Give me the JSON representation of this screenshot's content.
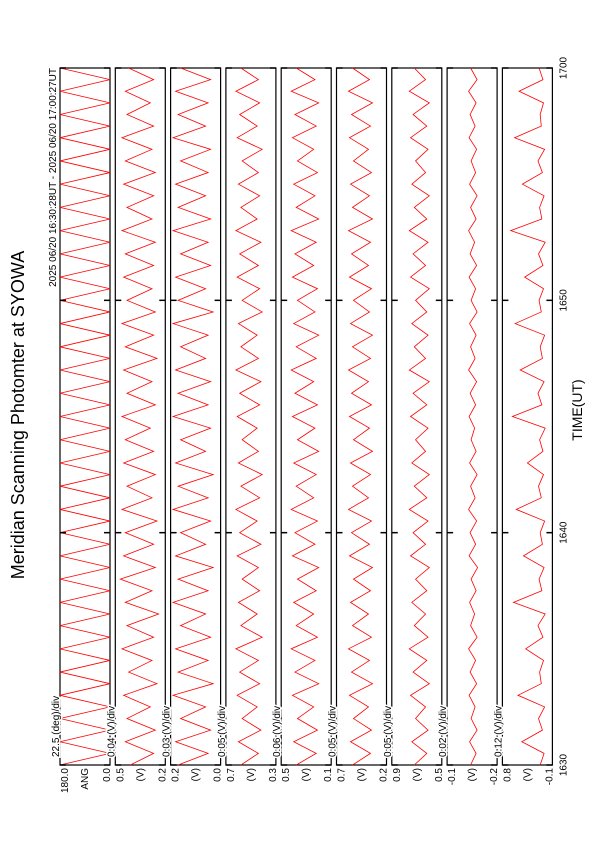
{
  "chart_data": {
    "type": "line",
    "title": "Meridian Scanning Photomter at SYOWA",
    "subtitle": "2025 06/20 16:30:28UT - 2025 06/20 17:00:27UT",
    "xlabel": "TIME(UT)",
    "color": "#ff0000",
    "xlim": [
      0,
      30
    ],
    "xticks": [
      {
        "value": 0,
        "label": "1630"
      },
      {
        "value": 10,
        "label": "1640"
      },
      {
        "value": 20,
        "label": "1650"
      },
      {
        "value": 30,
        "label": "1700"
      }
    ],
    "x": [
      0,
      0.5,
      1,
      1.5,
      2,
      2.5,
      3,
      3.5,
      4,
      4.5,
      5,
      5.5,
      6,
      6.5,
      7,
      7.5,
      8,
      8.5,
      9,
      9.5,
      10,
      10.5,
      11,
      11.5,
      12,
      12.5,
      13,
      13.5,
      14,
      14.5,
      15,
      15.5,
      16,
      16.5,
      17,
      17.5,
      18,
      18.5,
      19,
      19.5,
      20,
      20.5,
      21,
      21.5,
      22,
      22.5,
      23,
      23.5,
      24,
      24.5,
      25,
      25.5,
      26,
      26.5,
      27,
      27.5,
      28,
      28.5,
      29,
      29.5,
      30
    ],
    "panels": [
      {
        "scale_label": "22.5 (deg)/div",
        "ylabel": "ANG",
        "ylim": [
          0,
          180
        ],
        "yticks": [
          {
            "value": 180,
            "label": "180.0"
          },
          {
            "value": 0,
            "label": "0.0"
          }
        ],
        "values": [
          180,
          0,
          180,
          0,
          180,
          0,
          180,
          0,
          180,
          0,
          180,
          0,
          180,
          0,
          180,
          0,
          180,
          0,
          180,
          0,
          180,
          0,
          180,
          0,
          180,
          0,
          180,
          0,
          180,
          0,
          180,
          0,
          180,
          0,
          180,
          0,
          180,
          0,
          180,
          0,
          180,
          0,
          180,
          0,
          180,
          0,
          180,
          0,
          180,
          0,
          180,
          0,
          180,
          0,
          180,
          0,
          180,
          0,
          180,
          0,
          180
        ]
      },
      {
        "scale_label": "0.04 (V)/div",
        "ylabel": "(V)",
        "ylim": [
          0.2,
          0.5
        ],
        "yticks": [
          0.5,
          0.2
        ],
        "values": [
          0.41,
          0.27,
          0.44,
          0.26,
          0.43,
          0.29,
          0.45,
          0.25,
          0.42,
          0.28,
          0.46,
          0.27,
          0.43,
          0.24,
          0.44,
          0.28,
          0.47,
          0.26,
          0.45,
          0.27,
          0.44,
          0.25,
          0.46,
          0.28,
          0.43,
          0.26,
          0.45,
          0.27,
          0.44,
          0.29,
          0.46,
          0.26,
          0.43,
          0.28,
          0.45,
          0.25,
          0.44,
          0.27,
          0.46,
          0.26,
          0.43,
          0.28,
          0.45,
          0.27,
          0.44,
          0.26,
          0.46,
          0.28,
          0.43,
          0.27,
          0.45,
          0.26,
          0.44,
          0.28,
          0.46,
          0.27,
          0.43,
          0.29,
          0.44,
          0.27,
          0.42
        ]
      },
      {
        "scale_label": "0.03 (V)/div",
        "ylabel": "(V)",
        "ylim": [
          0,
          0.2
        ],
        "yticks": [
          0.2,
          {
            "value": 0,
            "label": "0.0"
          }
        ],
        "values": [
          0.17,
          0.05,
          0.18,
          0.04,
          0.16,
          0.06,
          0.19,
          0.03,
          0.17,
          0.05,
          0.18,
          0.04,
          0.16,
          0.06,
          0.19,
          0.05,
          0.17,
          0.03,
          0.18,
          0.06,
          0.16,
          0.04,
          0.19,
          0.05,
          0.17,
          0.03,
          0.18,
          0.06,
          0.16,
          0.04,
          0.19,
          0.05,
          0.17,
          0.04,
          0.18,
          0.06,
          0.16,
          0.05,
          0.19,
          0.03,
          0.17,
          0.06,
          0.18,
          0.04,
          0.16,
          0.05,
          0.19,
          0.04,
          0.17,
          0.06,
          0.18,
          0.05,
          0.16,
          0.04,
          0.19,
          0.06,
          0.17,
          0.05,
          0.18,
          0.04,
          0.16
        ]
      },
      {
        "scale_label": "0.05 (V)/div",
        "ylabel": "(V)",
        "ylim": [
          0.3,
          0.7
        ],
        "yticks": [
          0.7,
          0.3
        ],
        "values": [
          0.58,
          0.44,
          0.6,
          0.42,
          0.57,
          0.45,
          0.61,
          0.43,
          0.59,
          0.44,
          0.62,
          0.41,
          0.58,
          0.45,
          0.6,
          0.43,
          0.57,
          0.44,
          0.61,
          0.42,
          0.59,
          0.45,
          0.62,
          0.43,
          0.58,
          0.41,
          0.6,
          0.44,
          0.57,
          0.45,
          0.61,
          0.43,
          0.59,
          0.42,
          0.62,
          0.44,
          0.58,
          0.45,
          0.6,
          0.41,
          0.57,
          0.43,
          0.61,
          0.44,
          0.59,
          0.42,
          0.62,
          0.45,
          0.58,
          0.43,
          0.6,
          0.44,
          0.57,
          0.41,
          0.61,
          0.45,
          0.59,
          0.43,
          0.62,
          0.44,
          0.58
        ]
      },
      {
        "scale_label": "0.06 (V)/div",
        "ylabel": "(V)",
        "ylim": [
          0.1,
          0.5
        ],
        "yticks": [
          0.5,
          0.1
        ],
        "values": [
          0.38,
          0.22,
          0.4,
          0.21,
          0.37,
          0.24,
          0.41,
          0.2,
          0.39,
          0.23,
          0.42,
          0.21,
          0.38,
          0.24,
          0.4,
          0.22,
          0.37,
          0.2,
          0.41,
          0.23,
          0.39,
          0.21,
          0.42,
          0.24,
          0.38,
          0.22,
          0.4,
          0.2,
          0.37,
          0.23,
          0.41,
          0.21,
          0.39,
          0.24,
          0.42,
          0.22,
          0.38,
          0.2,
          0.4,
          0.23,
          0.37,
          0.21,
          0.41,
          0.24,
          0.39,
          0.22,
          0.42,
          0.2,
          0.38,
          0.23,
          0.4,
          0.21,
          0.37,
          0.24,
          0.41,
          0.22,
          0.39,
          0.2,
          0.42,
          0.23,
          0.38
        ]
      },
      {
        "scale_label": "0.05 (V)/div",
        "ylabel": "(V)",
        "ylim": [
          0.2,
          0.7
        ],
        "yticks": [
          0.7,
          0.2
        ],
        "values": [
          0.54,
          0.36,
          0.56,
          0.35,
          0.53,
          0.38,
          0.57,
          0.34,
          0.55,
          0.37,
          0.58,
          0.35,
          0.54,
          0.38,
          0.56,
          0.36,
          0.53,
          0.34,
          0.57,
          0.37,
          0.55,
          0.35,
          0.58,
          0.38,
          0.54,
          0.36,
          0.56,
          0.34,
          0.53,
          0.37,
          0.57,
          0.35,
          0.55,
          0.38,
          0.58,
          0.36,
          0.54,
          0.34,
          0.56,
          0.37,
          0.53,
          0.35,
          0.57,
          0.38,
          0.55,
          0.36,
          0.58,
          0.34,
          0.54,
          0.37,
          0.56,
          0.35,
          0.53,
          0.38,
          0.57,
          0.36,
          0.55,
          0.34,
          0.58,
          0.37,
          0.54
        ]
      },
      {
        "scale_label": "0.05 (V)/div",
        "ylabel": "(V)",
        "ylim": [
          0.5,
          0.9
        ],
        "yticks": [
          0.9,
          0.5
        ],
        "values": [
          0.72,
          0.62,
          0.74,
          0.61,
          0.71,
          0.63,
          0.75,
          0.6,
          0.73,
          0.62,
          0.76,
          0.61,
          0.72,
          0.63,
          0.74,
          0.62,
          0.71,
          0.6,
          0.75,
          0.63,
          0.73,
          0.61,
          0.76,
          0.62,
          0.72,
          0.6,
          0.74,
          0.63,
          0.71,
          0.61,
          0.75,
          0.62,
          0.73,
          0.6,
          0.76,
          0.63,
          0.72,
          0.61,
          0.74,
          0.62,
          0.71,
          0.6,
          0.75,
          0.63,
          0.73,
          0.61,
          0.76,
          0.62,
          0.72,
          0.6,
          0.74,
          0.63,
          0.71,
          0.61,
          0.75,
          0.62,
          0.73,
          0.6,
          0.76,
          0.63,
          0.72
        ]
      },
      {
        "scale_label": "0.02 (V)/div",
        "ylabel": "(V)",
        "ylim": [
          -0.2,
          -0.1
        ],
        "yticks": [
          -0.1,
          -0.2
        ],
        "values": [
          -0.147,
          -0.158,
          -0.145,
          -0.16,
          -0.148,
          -0.156,
          -0.144,
          -0.159,
          -0.146,
          -0.157,
          -0.143,
          -0.16,
          -0.147,
          -0.155,
          -0.145,
          -0.158,
          -0.148,
          -0.161,
          -0.144,
          -0.157,
          -0.146,
          -0.159,
          -0.143,
          -0.156,
          -0.147,
          -0.16,
          -0.145,
          -0.158,
          -0.148,
          -0.155,
          -0.144,
          -0.157,
          -0.146,
          -0.159,
          -0.143,
          -0.156,
          -0.147,
          -0.158,
          -0.145,
          -0.16,
          -0.148,
          -0.157,
          -0.144,
          -0.159,
          -0.146,
          -0.155,
          -0.143,
          -0.158,
          -0.147,
          -0.16,
          -0.145,
          -0.157,
          -0.148,
          -0.159,
          -0.144,
          -0.156,
          -0.146,
          -0.158,
          -0.143,
          -0.16,
          -0.147
        ]
      },
      {
        "scale_label": "0.12 (V)/div",
        "ylabel": "(V)",
        "ylim": [
          -0.1,
          0.8
        ],
        "yticks": [
          0.8,
          -0.1
        ],
        "values": [
          0.12,
          0.05,
          0.45,
          0.08,
          0.15,
          0.04,
          0.52,
          0.1,
          0.13,
          0.06,
          0.38,
          0.07,
          0.16,
          0.03,
          0.6,
          0.09,
          0.14,
          0.05,
          0.42,
          0.08,
          0.12,
          0.04,
          0.55,
          0.1,
          0.15,
          0.06,
          0.35,
          0.07,
          0.13,
          0.03,
          0.62,
          0.09,
          0.16,
          0.05,
          0.48,
          0.08,
          0.12,
          0.04,
          0.57,
          0.1,
          0.14,
          0.06,
          0.4,
          0.07,
          0.15,
          0.03,
          0.65,
          0.09,
          0.13,
          0.05,
          0.44,
          0.08,
          0.16,
          0.04,
          0.58,
          0.1,
          0.12,
          0.06,
          0.5,
          0.07,
          0.14
        ]
      }
    ]
  }
}
